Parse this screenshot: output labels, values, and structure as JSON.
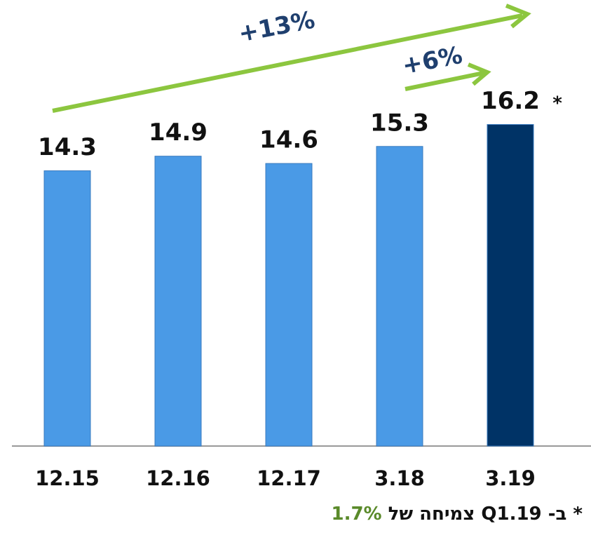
{
  "chart_data": {
    "type": "bar",
    "categories": [
      "12.15",
      "12.16",
      "12.17",
      "3.18",
      "3.19"
    ],
    "values": [
      14.3,
      14.9,
      14.6,
      15.3,
      16.2
    ],
    "colors": [
      "#4a9ae6",
      "#4a9ae6",
      "#4a9ae6",
      "#4a9ae6",
      "#003366"
    ],
    "ylim": [
      3,
      18
    ],
    "annotations": {
      "long_growth": "+13%",
      "short_growth": "+6%",
      "marker": "*"
    },
    "footnote": {
      "text": "* ב- Q1.19 צמיחה של",
      "highlight": "1.7%"
    }
  }
}
